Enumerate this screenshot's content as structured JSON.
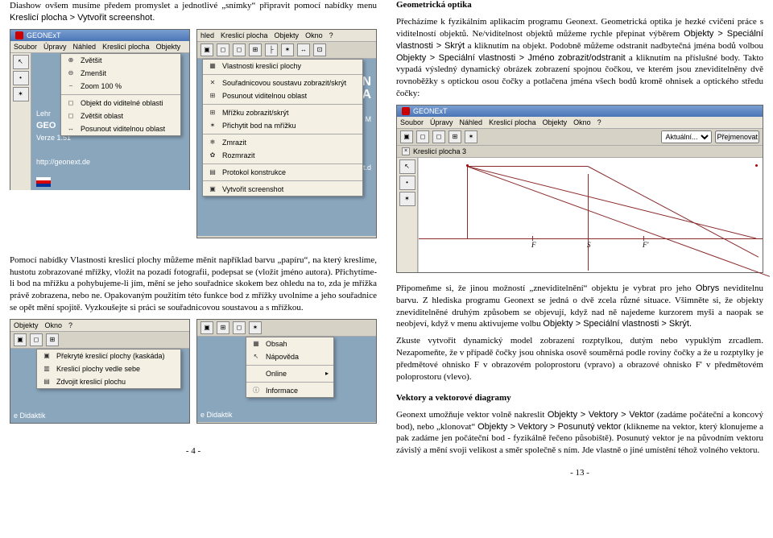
{
  "left": {
    "intro": "Diashow ovšem musíme předem promyslet a jednotlivé „snímky“ připravit pomocí nabídky menu ",
    "intro_sans": "Kreslicí plocha > Vytvořit screenshot.",
    "win1": {
      "title": "GEONExT",
      "menus": [
        "Soubor",
        "Úpravy",
        "Náhled",
        "Kreslicí plocha",
        "Objekty"
      ],
      "menu_items": [
        {
          "icon": "⊕",
          "label": "Zvětšit"
        },
        {
          "icon": "⊖",
          "label": "Zmenšit"
        },
        {
          "icon": "⎯",
          "label": "Zoom 100 %",
          "sep_after": true
        },
        {
          "icon": "◻",
          "label": "Objekt do viditelné oblasti"
        },
        {
          "icon": "◻",
          "label": "Zvětšit oblast"
        },
        {
          "icon": "↔",
          "label": "Posunout viditelnou oblast"
        }
      ],
      "side_labels": [
        "Lehr",
        "GEO",
        "Verze 1.51",
        "http://geonext.de"
      ]
    },
    "win2": {
      "menus": [
        "hled",
        "Kreslicí plocha",
        "Objekty",
        "Okno",
        "?"
      ],
      "toolbar_count": 8,
      "menu_items": [
        {
          "icon": "▦",
          "label": "Vlastnosti kreslicí plochy",
          "sep_after": true
        },
        {
          "icon": "✕",
          "label": "Souřadnicovou soustavu zobrazit/skrýt"
        },
        {
          "icon": "⊞",
          "label": "Posunout viditelnou oblast",
          "sep_after": true
        },
        {
          "icon": "⊞",
          "label": "Mřížku zobrazit/skrýt"
        },
        {
          "icon": "✶",
          "label": "Přichytit bod na mřížku",
          "sep_after": true
        },
        {
          "icon": "❄",
          "label": "Zmrazit"
        },
        {
          "icon": "✿",
          "label": "Rozmrazit",
          "sep_after": true
        },
        {
          "icon": "▤",
          "label": "Protokol konstrukce",
          "sep_after": true
        },
        {
          "icon": "▣",
          "label": "Vytvořit screenshot"
        }
      ],
      "right_text_top": "UN",
      "right_text_bot": "BA",
      "right_small": "für M",
      "right_url": "ext.d"
    },
    "para2": "Pomocí nabídky Vlastnosti kreslicí plochy můžeme měnit například barvu „papíru“, na který kreslíme, hustotu zobrazované mřížky, vložit na pozadí fotografii, podepsat se (vložit jméno autora). Přichytíme-li bod na mřížku a pohybujeme-li jím, mění se jeho souřadnice skokem bez ohledu na to, zda je mřížka právě zobrazena, nebo ne. Opakovaným použitím této funkce bod z mřížky uvolníme a jeho souřadnice se opět mění spojitě. Vyzkoušejte si práci se souřadnicovou soustavou a s mřížkou.",
    "win3": {
      "menus": [
        "Objekty",
        "Okno",
        "?"
      ],
      "items": [
        {
          "icon": "▣",
          "label": "Překryté kreslicí plochy (kaskáda)"
        },
        {
          "icon": "▥",
          "label": "Kreslicí plochy vedle sebe"
        },
        {
          "icon": "▤",
          "label": "Zdvojit kreslicí plochu"
        }
      ],
      "footer": "e Didaktik"
    },
    "win4": {
      "items": [
        {
          "icon": "▦",
          "label": "Obsah"
        },
        {
          "icon": "↖",
          "label": "Nápověda",
          "sep_after": true
        },
        {
          "icon": "",
          "label": "Online",
          "arrow": true,
          "sep_after": true
        },
        {
          "icon": "ⓘ",
          "label": "Informace"
        }
      ],
      "footer": "e Didaktik"
    },
    "pagenum": "- 4 -"
  },
  "right": {
    "title": "Geometrická optika",
    "p1": "Přecházíme k fyzikálním aplikacím programu Geonext. Geometrická optika je hezké cvičení práce s viditelností objektů. Ne/viditelnost objektů můžeme rychle přepínat výběrem ",
    "p1_sans1": "Objekty > Speciální vlastnosti > Skrýt",
    "p1_mid": " a kliknutím na objekt. Podobně můžeme odstranit nadbytečná jména bodů volbou ",
    "p1_sans2": "Objekty > Speciální vlastnosti > Jméno zobrazit/odstranit",
    "p1_end": " a kliknutím na příslušné body. Takto vypadá výsledný dynamický obrázek zobrazení spojnou čočkou, ve kterém jsou zneviditelněny dvě rovnoběžky s optickou osou čočky a potlačena jména všech bodů kromě ohnisek a optického středu čočky:",
    "lens": {
      "title": "GEONExT",
      "menus": [
        "Soubor",
        "Úpravy",
        "Náhled",
        "Kreslicí plocha",
        "Objekty",
        "Okno",
        "?"
      ],
      "tab_label": "Kreslicí plocha 3",
      "dropdown_items": [
        "Aktuální...",
        "Přejmenovat"
      ],
      "F": "F",
      "S": "S",
      "Fp": "F'",
      "line_color": "#8a2a2a",
      "bg": "#ffffff"
    },
    "p2a": "Připomeňme si, že jinou možností „zneviditelnění“ objektu je vybrat pro jeho ",
    "p2_sans1": "Obrys",
    "p2b": " neviditelnu barvu. Z hlediska programu Geonext se jedná o dvě zcela různé situace. Všimněte si, že objekty zneviditelněné druhým způsobem se objevují, když nad ně najedeme kurzorem myši a naopak se neobjeví, když v menu aktivujeme volbu ",
    "p2_sans2": "Objekty > Speciální vlastnosti > Skrýt.",
    "p3": "Zkuste vytvořit dynamický model zobrazení rozptylkou, dutým nebo vypuklým zrcadlem. Nezapomeňte, že v případě čočky jsou ohniska osově souměrná podle roviny čočky a že u rozptylky je předmětové ohnisko F v obrazovém poloprostoru (vpravo) a obrazové ohnisko F' v předmětovém poloprostoru (vlevo).",
    "title2": "Vektory a vektorové diagramy",
    "p4a": "Geonext umožňuje vektor volně nakreslit ",
    "p4_sans1": "Objekty > Vektory > Vektor",
    "p4b": " (zadáme počáteční a koncový bod), nebo „klonovat“ ",
    "p4_sans2": "Objekty > Vektory > Posunutý vektor",
    "p4c": " (klikneme na vektor, který klonujeme a pak zadáme jen počáteční bod - fyzikálně řečeno působiště). Posunutý vektor je na původním vektoru závislý a mění svoji velikost a směr společně s ním. Jde vlastně o jiné umístění téhož volného vektoru.",
    "pagenum": "- 13 -"
  }
}
